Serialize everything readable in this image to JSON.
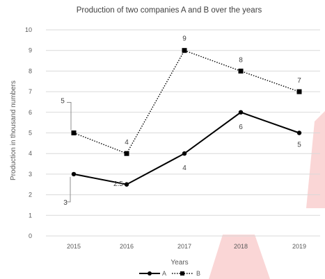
{
  "chart_data": {
    "type": "line",
    "title": "Production of two companies A and B over the years",
    "xlabel": "Years",
    "ylabel": "Production in thousand numbers",
    "categories": [
      "2015",
      "2016",
      "2017",
      "2018",
      "2019"
    ],
    "ylim": [
      0,
      10
    ],
    "yticks": [
      "0",
      "1",
      "2",
      "3",
      "4",
      "5",
      "6",
      "7",
      "8",
      "9",
      "10"
    ],
    "grid": true,
    "legend": "bottom",
    "series": [
      {
        "name": "A",
        "values": [
          3,
          2.5,
          4,
          6,
          5
        ],
        "labels": [
          "3",
          "2.5",
          "4",
          "6",
          "5"
        ],
        "style": "solid",
        "marker": "circle",
        "color": "#000000"
      },
      {
        "name": "B",
        "values": [
          5,
          4,
          9,
          8,
          7
        ],
        "labels": [
          "5",
          "4",
          "9",
          "8",
          "7"
        ],
        "style": "dotted",
        "marker": "square",
        "color": "#000000"
      }
    ],
    "watermark_color": "#f6b5b5"
  }
}
